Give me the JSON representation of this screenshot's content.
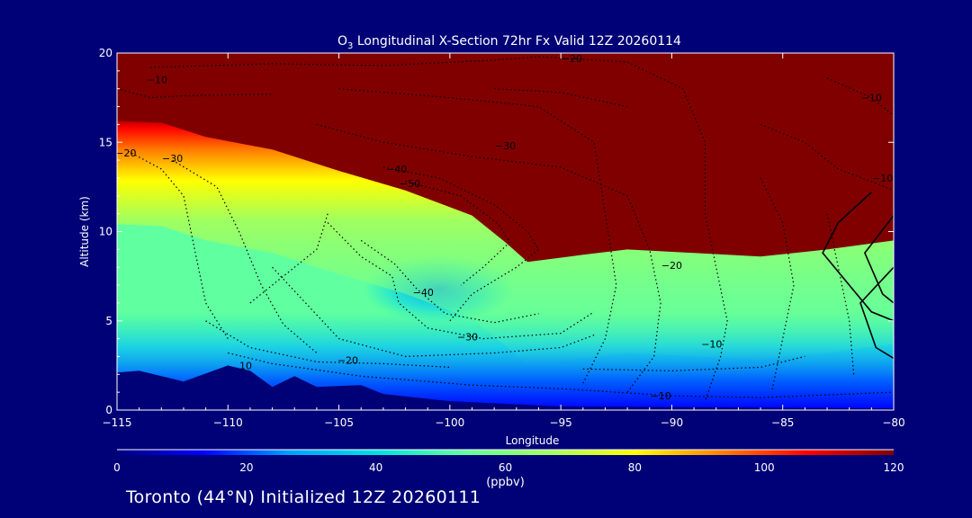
{
  "chart_data": {
    "type": "heatmap",
    "title": {
      "species": "O",
      "subscript": "3",
      "rest": " Longitudinal X-Section 72hr  Fx Valid 12Z 20260114"
    },
    "xlabel": "Longitude",
    "ylabel": "Altitude (km)",
    "xlim": [
      -115,
      -80
    ],
    "ylim": [
      0,
      20
    ],
    "x_ticks": [
      -115,
      -110,
      -105,
      -100,
      -95,
      -90,
      -85,
      -80
    ],
    "x_tick_labels": [
      "−115",
      "−110",
      "−105",
      "−100",
      "−95",
      "−90",
      "−85",
      "−80"
    ],
    "y_ticks": [
      0,
      5,
      10,
      15,
      20
    ],
    "y_tick_labels": [
      "0",
      "5",
      "10",
      "15",
      "20"
    ],
    "colorbar": {
      "min": 0,
      "max": 120,
      "ticks": [
        0,
        20,
        40,
        60,
        80,
        100,
        120
      ],
      "tick_labels": [
        "0",
        "20",
        "40",
        "60",
        "80",
        "100",
        "120"
      ],
      "unit": "(ppbv)",
      "colors": [
        "#00007f",
        "#0000ff",
        "#00a0ff",
        "#00e0e0",
        "#60ffa0",
        "#a0ff60",
        "#ffff00",
        "#ff8000",
        "#ff0000",
        "#800000"
      ]
    },
    "tropopause": [
      {
        "lon": -115,
        "alt": 16.2
      },
      {
        "lon": -113,
        "alt": 16.1
      },
      {
        "lon": -111,
        "alt": 15.3
      },
      {
        "lon": -108,
        "alt": 14.6
      },
      {
        "lon": -105,
        "alt": 13.4
      },
      {
        "lon": -102,
        "alt": 12.3
      },
      {
        "lon": -99,
        "alt": 10.9
      },
      {
        "lon": -97.5,
        "alt": 9.4
      },
      {
        "lon": -96.5,
        "alt": 8.3
      },
      {
        "lon": -94,
        "alt": 8.7
      },
      {
        "lon": -92,
        "alt": 9.0
      },
      {
        "lon": -89,
        "alt": 8.8
      },
      {
        "lon": -86,
        "alt": 8.6
      },
      {
        "lon": -83,
        "alt": 9.0
      },
      {
        "lon": -80,
        "alt": 9.5
      }
    ],
    "terrain": [
      {
        "lon": -115,
        "alt": 2.1
      },
      {
        "lon": -114,
        "alt": 2.2
      },
      {
        "lon": -112,
        "alt": 1.6
      },
      {
        "lon": -110,
        "alt": 2.5
      },
      {
        "lon": -109,
        "alt": 2.2
      },
      {
        "lon": -108,
        "alt": 1.3
      },
      {
        "lon": -107,
        "alt": 1.9
      },
      {
        "lon": -106,
        "alt": 1.3
      },
      {
        "lon": -104,
        "alt": 1.4
      },
      {
        "lon": -103,
        "alt": 0.9
      },
      {
        "lon": -100,
        "alt": 0.5
      },
      {
        "lon": -95,
        "alt": 0.2
      },
      {
        "lon": -80,
        "alt": 0.1
      }
    ],
    "blue_anomaly": {
      "lon": -100.5,
      "alt": 6.8,
      "value": 45
    },
    "contour_labels": [
      {
        "text": "−10",
        "lon": -113.2,
        "alt": 18.3
      },
      {
        "text": "−20",
        "lon": -94.5,
        "alt": 19.5
      },
      {
        "text": "−10",
        "lon": -81,
        "alt": 17.3
      },
      {
        "text": "−20",
        "lon": -114.6,
        "alt": 14.2
      },
      {
        "text": "−30",
        "lon": -112.5,
        "alt": 13.9
      },
      {
        "text": "−30",
        "lon": -97.5,
        "alt": 14.6
      },
      {
        "text": "−40",
        "lon": -102.4,
        "alt": 13.3
      },
      {
        "text": "−50",
        "lon": -101.8,
        "alt": 12.5
      },
      {
        "text": "−10",
        "lon": -80.5,
        "alt": 12.8
      },
      {
        "text": "−20",
        "lon": -90,
        "alt": 7.9
      },
      {
        "text": "−40",
        "lon": -101.2,
        "alt": 6.4
      },
      {
        "text": "−30",
        "lon": -99.2,
        "alt": 3.9
      },
      {
        "text": "−20",
        "lon": -104.6,
        "alt": 2.6
      },
      {
        "text": "−10",
        "lon": -88.2,
        "alt": 3.5
      },
      {
        "text": "−10",
        "lon": -90.5,
        "alt": 0.6
      },
      {
        "text": "10",
        "lon": -109.2,
        "alt": 2.3
      }
    ]
  },
  "footer": "Toronto (44°N) Initialized 12Z 20260111"
}
